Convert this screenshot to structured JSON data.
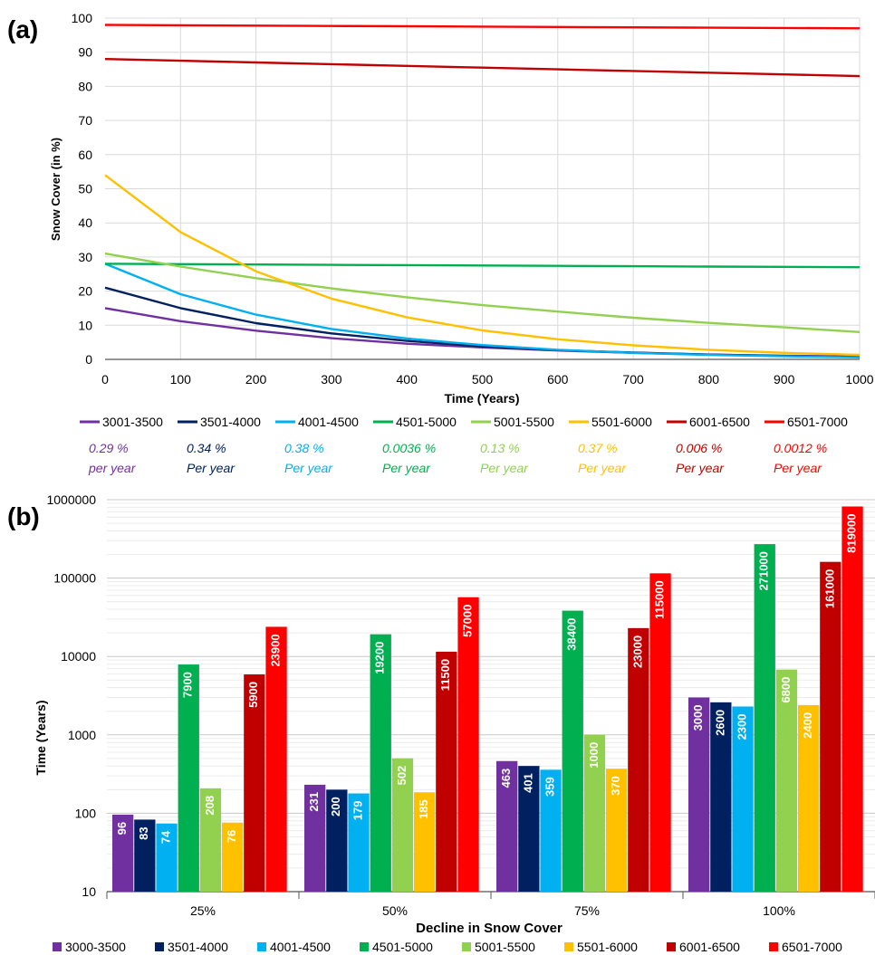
{
  "chart_data": [
    {
      "type": "line",
      "panel_label": "(a)",
      "xlabel": "Time (Years)",
      "ylabel": "Snow Cover (in %)",
      "xlim": [
        0,
        1000
      ],
      "ylim": [
        0,
        100
      ],
      "x_ticks": [
        "0",
        "100",
        "200",
        "300",
        "400",
        "500",
        "600",
        "700",
        "800",
        "900",
        "1000"
      ],
      "y_ticks": [
        "0",
        "10",
        "20",
        "30",
        "40",
        "50",
        "60",
        "70",
        "80",
        "90",
        "100"
      ],
      "grid": true,
      "legend_position": "bottom",
      "series": [
        {
          "name": "3001-3500",
          "color": "#7030a0",
          "rate": "0.29 %",
          "per": "per year",
          "x": [
            0,
            100,
            200,
            300,
            400,
            500,
            600,
            700,
            800,
            900,
            1000
          ],
          "values": [
            15,
            11.2,
            8.4,
            6.2,
            4.6,
            3.5,
            2.6,
            1.9,
            1.4,
            1.1,
            0.8
          ]
        },
        {
          "name": "3501-4000",
          "color": "#002060",
          "rate": "0.34 %",
          "per": "Per year",
          "x": [
            0,
            100,
            200,
            300,
            400,
            500,
            600,
            700,
            800,
            900,
            1000
          ],
          "values": [
            21,
            15,
            10.6,
            7.6,
            5.4,
            3.8,
            2.7,
            2.0,
            1.4,
            1.0,
            0.7
          ]
        },
        {
          "name": "4001-4500",
          "color": "#00b0f0",
          "rate": "0.38 %",
          "per": "Per year",
          "x": [
            0,
            100,
            200,
            300,
            400,
            500,
            600,
            700,
            800,
            900,
            1000
          ],
          "values": [
            28,
            19.1,
            13.1,
            8.9,
            6.1,
            4.2,
            2.8,
            1.9,
            1.3,
            0.9,
            0.6
          ]
        },
        {
          "name": "4501-5000",
          "color": "#00b050",
          "rate": "0.0036 %",
          "per": "Per year",
          "x": [
            0,
            100,
            200,
            300,
            400,
            500,
            600,
            700,
            800,
            900,
            1000
          ],
          "values": [
            28,
            27.9,
            27.8,
            27.7,
            27.6,
            27.5,
            27.4,
            27.3,
            27.2,
            27.1,
            27
          ]
        },
        {
          "name": "5001-5500",
          "color": "#92d050",
          "rate": "0.13 %",
          "per": "Per year",
          "x": [
            0,
            100,
            200,
            300,
            400,
            500,
            600,
            700,
            800,
            900,
            1000
          ],
          "values": [
            31,
            27.2,
            23.8,
            20.8,
            18.2,
            15.9,
            14.0,
            12.2,
            10.7,
            9.4,
            8
          ]
        },
        {
          "name": "5501-6000",
          "color": "#ffc000",
          "rate": "0.37 %",
          "per": "Per year",
          "x": [
            0,
            100,
            200,
            300,
            400,
            500,
            600,
            700,
            800,
            900,
            1000
          ],
          "values": [
            54,
            37.3,
            25.8,
            17.8,
            12.3,
            8.5,
            5.9,
            4.1,
            2.8,
            1.9,
            1.3
          ]
        },
        {
          "name": "6001-6500",
          "color": "#c00000",
          "rate": "0.006 %",
          "per": "Per year",
          "x": [
            0,
            100,
            200,
            300,
            400,
            500,
            600,
            700,
            800,
            900,
            1000
          ],
          "values": [
            88,
            87.5,
            87,
            86.5,
            86,
            85.5,
            85,
            84.5,
            84,
            83.5,
            83
          ]
        },
        {
          "name": "6501-7000",
          "color": "#ff0000",
          "rate": "0.0012 %",
          "per": "Per year",
          "x": [
            0,
            100,
            200,
            300,
            400,
            500,
            600,
            700,
            800,
            900,
            1000
          ],
          "values": [
            98,
            97.9,
            97.8,
            97.7,
            97.6,
            97.5,
            97.4,
            97.3,
            97.2,
            97.1,
            97
          ]
        }
      ]
    },
    {
      "type": "bar",
      "panel_label": "(b)",
      "xlabel": "Decline in Snow Cover",
      "ylabel": "Time (Years)",
      "y_scale": "log",
      "ylim": [
        10,
        1000000
      ],
      "y_ticks": [
        "10",
        "100",
        "1000",
        "10000",
        "100000",
        "1000000"
      ],
      "grid": true,
      "legend_position": "bottom",
      "categories": [
        "25%",
        "50%",
        "75%",
        "100%"
      ],
      "series": [
        {
          "name": "3000-3500",
          "color": "#7030a0",
          "values": [
            96,
            231,
            463,
            3000
          ]
        },
        {
          "name": "3501-4000",
          "color": "#002060",
          "values": [
            83,
            200,
            401,
            2600
          ]
        },
        {
          "name": "4001-4500",
          "color": "#00b0f0",
          "values": [
            74,
            179,
            359,
            2300
          ]
        },
        {
          "name": "4501-5000",
          "color": "#00b050",
          "values": [
            7900,
            19200,
            38400,
            271000
          ]
        },
        {
          "name": "5001-5500",
          "color": "#92d050",
          "values": [
            208,
            502,
            1000,
            6800
          ]
        },
        {
          "name": "5501-6000",
          "color": "#ffc000",
          "values": [
            76,
            185,
            370,
            2400
          ]
        },
        {
          "name": "6001-6500",
          "color": "#c00000",
          "values": [
            5900,
            11500,
            23000,
            161000
          ]
        },
        {
          "name": "6501-7000",
          "color": "#ff0000",
          "values": [
            23900,
            57000,
            115000,
            819000
          ]
        }
      ]
    }
  ]
}
